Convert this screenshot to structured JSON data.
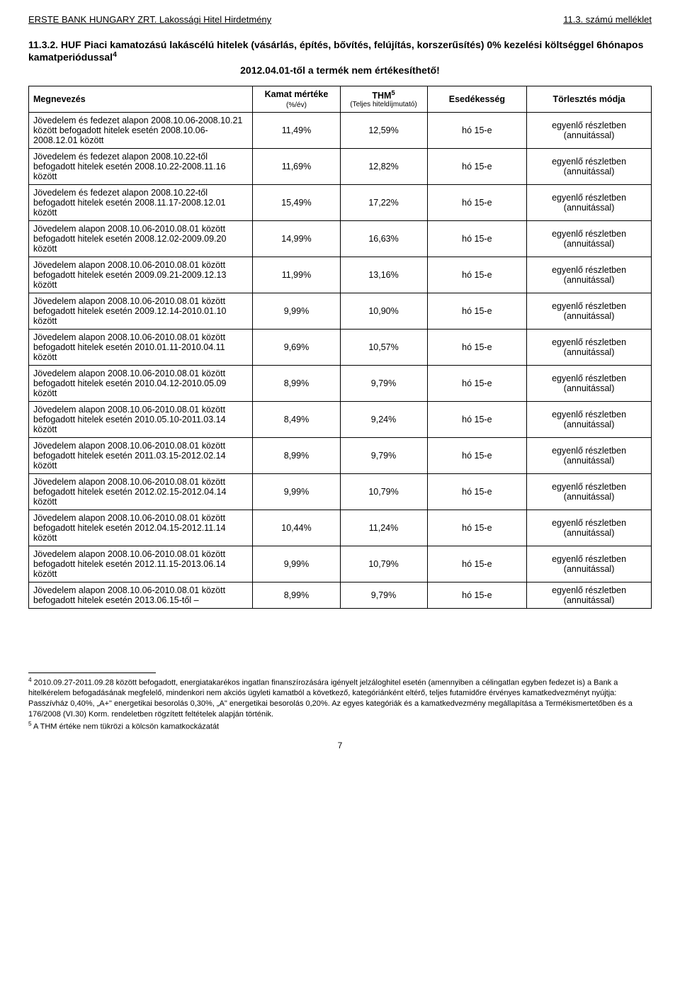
{
  "header": {
    "left": "ERSTE BANK HUNGARY ZRT. Lakossági Hitel Hirdetmény",
    "right": "11.3. számú melléklet"
  },
  "section": {
    "number": "11.3.2. HUF Piaci kamatozású lakáscélú hitelek (vásárlás, építés, bővítés, felújítás, korszerűsítés) 0% kezelési költséggel 6hónapos kamatperiódussal",
    "subtitle": "2012.04.01-től a termék nem értékesíthető!",
    "sup4": "4"
  },
  "table": {
    "headers": {
      "megnevezes": "Megnevezés",
      "kamat": "Kamat mértéke",
      "kamat_sub": "(%/év)",
      "thm": "THM",
      "thm_sup": "5",
      "thm_sub": "(Teljes hiteldíjmutató)",
      "esed": "Esedékesség",
      "torl": "Törlesztés módja"
    },
    "rows": [
      {
        "meg": "Jövedelem és fedezet alapon 2008.10.06-2008.10.21 között befogadott hitelek esetén 2008.10.06-2008.12.01 között",
        "kamat": "11,49%",
        "thm": "12,59%",
        "esed": "hó 15-e",
        "torl": "egyenlő részletben (annuitással)"
      },
      {
        "meg": "Jövedelem és fedezet alapon 2008.10.22-től befogadott hitelek esetén 2008.10.22-2008.11.16 között",
        "kamat": "11,69%",
        "thm": "12,82%",
        "esed": "hó 15-e",
        "torl": "egyenlő részletben (annuitással)"
      },
      {
        "meg": "Jövedelem és fedezet alapon 2008.10.22-től befogadott hitelek esetén 2008.11.17-2008.12.01 között",
        "kamat": "15,49%",
        "thm": "17,22%",
        "esed": "hó 15-e",
        "torl": "egyenlő részletben (annuitással)"
      },
      {
        "meg": "Jövedelem alapon 2008.10.06-2010.08.01 között befogadott hitelek esetén 2008.12.02-2009.09.20 között",
        "kamat": "14,99%",
        "thm": "16,63%",
        "esed": "hó 15-e",
        "torl": "egyenlő részletben (annuitással)"
      },
      {
        "meg": "Jövedelem alapon 2008.10.06-2010.08.01 között befogadott hitelek esetén 2009.09.21-2009.12.13 között",
        "kamat": "11,99%",
        "thm": "13,16%",
        "esed": "hó 15-e",
        "torl": "egyenlő részletben (annuitással)"
      },
      {
        "meg": "Jövedelem alapon 2008.10.06-2010.08.01 között befogadott hitelek esetén 2009.12.14-2010.01.10 között",
        "kamat": "9,99%",
        "thm": "10,90%",
        "esed": "hó 15-e",
        "torl": "egyenlő részletben (annuitással)"
      },
      {
        "meg": "Jövedelem alapon 2008.10.06-2010.08.01 között befogadott hitelek esetén 2010.01.11-2010.04.11 között",
        "kamat": "9,69%",
        "thm": "10,57%",
        "esed": "hó 15-e",
        "torl": "egyenlő részletben (annuitással)"
      },
      {
        "meg": "Jövedelem alapon 2008.10.06-2010.08.01 között befogadott hitelek esetén 2010.04.12-2010.05.09 között",
        "kamat": "8,99%",
        "thm": "9,79%",
        "esed": "hó 15-e",
        "torl": "egyenlő részletben (annuitással)"
      },
      {
        "meg": "Jövedelem alapon 2008.10.06-2010.08.01 között befogadott hitelek esetén 2010.05.10-2011.03.14 között",
        "kamat": "8,49%",
        "thm": "9,24%",
        "esed": "hó 15-e",
        "torl": "egyenlő részletben (annuitással)"
      },
      {
        "meg": "Jövedelem alapon 2008.10.06-2010.08.01 között befogadott hitelek esetén 2011.03.15-2012.02.14 között",
        "kamat": "8,99%",
        "thm": "9,79%",
        "esed": "hó 15-e",
        "torl": "egyenlő részletben (annuitással)"
      },
      {
        "meg": "Jövedelem alapon 2008.10.06-2010.08.01 között befogadott hitelek esetén 2012.02.15-2012.04.14 között",
        "kamat": "9,99%",
        "thm": "10,79%",
        "esed": "hó 15-e",
        "torl": "egyenlő részletben (annuitással)"
      },
      {
        "meg": "Jövedelem alapon 2008.10.06-2010.08.01 között befogadott hitelek esetén 2012.04.15-2012.11.14 között",
        "kamat": "10,44%",
        "thm": "11,24%",
        "esed": "hó 15-e",
        "torl": "egyenlő részletben (annuitással)"
      },
      {
        "meg": "Jövedelem alapon 2008.10.06-2010.08.01 között befogadott hitelek esetén 2012.11.15-2013.06.14 között",
        "kamat": "9,99%",
        "thm": "10,79%",
        "esed": "hó 15-e",
        "torl": "egyenlő részletben (annuitással)"
      },
      {
        "meg": "Jövedelem alapon 2008.10.06-2010.08.01 között befogadott hitelek esetén 2013.06.15-től –",
        "kamat": "8,99%",
        "thm": "9,79%",
        "esed": "hó 15-e",
        "torl": "egyenlő részletben (annuitással)"
      }
    ]
  },
  "footnotes": {
    "fn4_num": "4",
    "fn4": " 2010.09.27-2011.09.28 között befogadott, energiatakarékos ingatlan finanszírozására igényelt jelzáloghitel esetén (amennyiben a célingatlan egyben fedezet is) a Bank a hitelkérelem befogadásának megfelelő, mindenkori nem akciós ügyleti kamatból a következő, kategóriánként eltérő, teljes futamidőre érvényes kamatkedvezményt nyújtja: Passzívház 0,40%, „A+\" energetikai besorolás 0,30%, „A\" energetikai besorolás 0,20%. Az egyes kategóriák és a kamatkedvezmény megállapítása a Termékismertetőben és a 176/2008 (VI.30) Korm. rendeletben rögzített feltételek alapján történik.",
    "fn5_num": "5",
    "fn5": " A THM értéke nem tükrözi a kölcsön kamatkockázatát"
  },
  "page_number": "7"
}
